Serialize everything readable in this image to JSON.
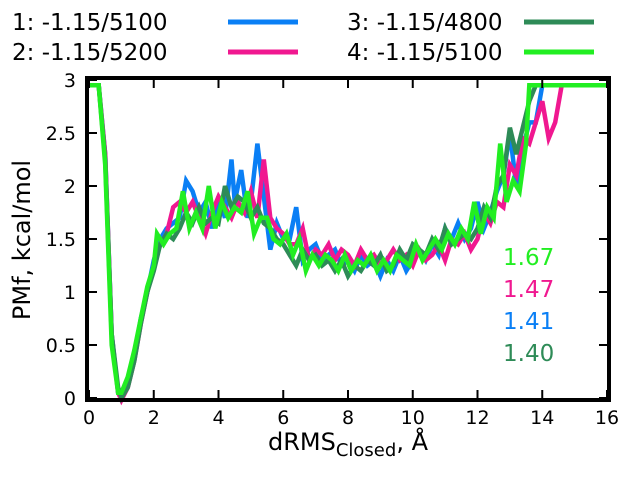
{
  "chart_data": {
    "type": "line",
    "title": "",
    "xlabel": "dRMS",
    "xlabel_sub": "Closed",
    "xlabel_suffix": ", Å",
    "ylabel": "PMf, kcal/mol",
    "xlim": [
      0,
      16
    ],
    "ylim": [
      0,
      3
    ],
    "xticks": [
      0,
      2,
      4,
      6,
      8,
      10,
      12,
      14,
      16
    ],
    "yticks": [
      0,
      0.5,
      1,
      1.5,
      2,
      2.5,
      3
    ],
    "ytick_labels": [
      "0",
      "0.5",
      "1",
      "1.5",
      "2",
      "2.5",
      "3"
    ],
    "grid": false,
    "legend_position": "top",
    "series": [
      {
        "name": "1: -1.15/5100",
        "color": "#0a7ff5",
        "x": [
          0,
          0.3,
          0.5,
          0.7,
          0.9,
          1.0,
          1.2,
          1.4,
          1.6,
          1.8,
          2.0,
          2.2,
          2.4,
          2.6,
          2.8,
          3.0,
          3.2,
          3.4,
          3.6,
          3.8,
          4.0,
          4.2,
          4.4,
          4.5,
          4.7,
          4.9,
          5.0,
          5.2,
          5.4,
          5.6,
          5.8,
          6.0,
          6.2,
          6.4,
          6.6,
          6.8,
          7.0,
          7.2,
          7.4,
          7.6,
          7.8,
          8.0,
          8.2,
          8.4,
          8.6,
          8.8,
          9.0,
          9.2,
          9.4,
          9.6,
          9.8,
          10.0,
          10.2,
          10.4,
          10.6,
          10.8,
          11.0,
          11.2,
          11.4,
          11.6,
          11.8,
          12.0,
          12.2,
          12.4,
          12.6,
          12.8,
          13.0,
          13.2,
          13.4,
          13.6,
          13.8,
          14.0,
          14.2,
          14.4,
          14.6,
          15.0,
          15.5,
          16.0
        ],
        "y": [
          2.95,
          2.95,
          2.3,
          0.6,
          0.05,
          0.0,
          0.15,
          0.4,
          0.75,
          1.0,
          1.3,
          1.5,
          1.6,
          1.65,
          1.7,
          2.05,
          1.95,
          1.75,
          1.85,
          1.6,
          1.9,
          1.7,
          2.25,
          1.85,
          2.15,
          1.7,
          1.85,
          2.4,
          1.9,
          1.4,
          1.65,
          1.5,
          1.5,
          1.8,
          1.3,
          1.4,
          1.45,
          1.3,
          1.35,
          1.4,
          1.25,
          1.3,
          1.2,
          1.35,
          1.25,
          1.3,
          1.15,
          1.3,
          1.2,
          1.35,
          1.2,
          1.3,
          1.4,
          1.3,
          1.45,
          1.35,
          1.6,
          1.5,
          1.65,
          1.5,
          1.6,
          1.85,
          1.6,
          1.75,
          1.95,
          2.1,
          2.5,
          2.0,
          2.35,
          2.6,
          2.6,
          2.95,
          2.95,
          2.95,
          2.95,
          2.95,
          2.95,
          2.95
        ]
      },
      {
        "name": "2: -1.15/5200",
        "color": "#f01890",
        "x": [
          0,
          0.3,
          0.5,
          0.7,
          0.9,
          1.0,
          1.2,
          1.4,
          1.6,
          1.8,
          2.0,
          2.2,
          2.4,
          2.6,
          2.8,
          3.0,
          3.2,
          3.4,
          3.6,
          3.8,
          4.0,
          4.2,
          4.4,
          4.6,
          4.8,
          5.0,
          5.2,
          5.4,
          5.6,
          5.8,
          6.0,
          6.2,
          6.4,
          6.6,
          6.8,
          7.0,
          7.2,
          7.4,
          7.6,
          7.8,
          8.0,
          8.2,
          8.4,
          8.6,
          8.8,
          9.0,
          9.2,
          9.4,
          9.6,
          9.8,
          10.0,
          10.2,
          10.4,
          10.6,
          10.8,
          11.0,
          11.2,
          11.4,
          11.6,
          11.8,
          12.0,
          12.2,
          12.4,
          12.6,
          12.8,
          13.0,
          13.2,
          13.4,
          13.6,
          13.8,
          14.0,
          14.2,
          14.4,
          14.6,
          15.0,
          15.5,
          16.0
        ],
        "y": [
          2.95,
          2.95,
          2.3,
          0.6,
          0.05,
          -0.02,
          0.1,
          0.35,
          0.7,
          1.0,
          1.25,
          1.45,
          1.55,
          1.8,
          1.85,
          1.75,
          1.85,
          1.7,
          1.55,
          1.75,
          1.9,
          1.8,
          1.7,
          1.85,
          1.75,
          1.95,
          1.7,
          2.25,
          1.7,
          1.6,
          1.55,
          1.45,
          1.45,
          1.6,
          1.3,
          1.4,
          1.35,
          1.45,
          1.3,
          1.4,
          1.35,
          1.25,
          1.4,
          1.3,
          1.35,
          1.25,
          1.3,
          1.4,
          1.3,
          1.35,
          1.25,
          1.4,
          1.3,
          1.35,
          1.45,
          1.3,
          1.5,
          1.45,
          1.55,
          1.4,
          1.5,
          1.75,
          1.65,
          1.85,
          1.8,
          2.2,
          2.1,
          2.45,
          2.4,
          2.6,
          2.8,
          2.45,
          2.6,
          2.95,
          2.95,
          2.95,
          2.95
        ]
      },
      {
        "name": "3: -1.15/4800",
        "color": "#2e8b57",
        "x": [
          0,
          0.3,
          0.5,
          0.7,
          0.9,
          1.0,
          1.2,
          1.4,
          1.6,
          1.8,
          2.0,
          2.2,
          2.4,
          2.6,
          2.8,
          3.0,
          3.2,
          3.4,
          3.6,
          3.8,
          4.0,
          4.2,
          4.4,
          4.6,
          4.8,
          5.0,
          5.2,
          5.4,
          5.6,
          5.8,
          6.0,
          6.2,
          6.4,
          6.6,
          6.8,
          7.0,
          7.2,
          7.4,
          7.6,
          7.8,
          8.0,
          8.2,
          8.4,
          8.6,
          8.8,
          9.0,
          9.2,
          9.4,
          9.6,
          9.8,
          10.0,
          10.2,
          10.4,
          10.6,
          10.8,
          11.0,
          11.2,
          11.4,
          11.6,
          11.8,
          12.0,
          12.2,
          12.4,
          12.6,
          12.8,
          13.0,
          13.2,
          13.4,
          13.6,
          13.8,
          14.0,
          14.5,
          15.0,
          15.5,
          16.0
        ],
        "y": [
          2.95,
          2.95,
          2.25,
          0.6,
          0.1,
          0.0,
          0.1,
          0.35,
          0.7,
          1.0,
          1.2,
          1.45,
          1.55,
          1.5,
          1.6,
          1.75,
          1.65,
          1.8,
          1.65,
          1.7,
          1.65,
          2.0,
          1.8,
          1.9,
          1.85,
          1.7,
          1.8,
          1.65,
          1.6,
          1.5,
          1.45,
          1.35,
          1.25,
          1.4,
          1.3,
          1.35,
          1.25,
          1.3,
          1.2,
          1.3,
          1.15,
          1.25,
          1.2,
          1.3,
          1.25,
          1.35,
          1.2,
          1.25,
          1.4,
          1.3,
          1.45,
          1.4,
          1.35,
          1.5,
          1.4,
          1.6,
          1.45,
          1.5,
          1.55,
          1.5,
          1.6,
          1.8,
          1.7,
          2.0,
          2.1,
          2.55,
          2.3,
          2.55,
          2.8,
          2.95,
          2.95,
          2.95,
          2.95,
          2.95,
          2.95
        ]
      },
      {
        "name": "4: -1.15/5100",
        "color": "#22ee22",
        "x": [
          0,
          0.3,
          0.5,
          0.7,
          0.9,
          1.0,
          1.2,
          1.4,
          1.6,
          1.8,
          2.0,
          2.1,
          2.3,
          2.5,
          2.7,
          2.9,
          3.1,
          3.3,
          3.5,
          3.7,
          3.9,
          4.1,
          4.3,
          4.5,
          4.7,
          4.9,
          5.1,
          5.3,
          5.5,
          5.7,
          5.9,
          6.1,
          6.3,
          6.5,
          6.7,
          6.9,
          7.1,
          7.3,
          7.5,
          7.7,
          7.9,
          8.1,
          8.3,
          8.5,
          8.7,
          8.9,
          9.1,
          9.3,
          9.5,
          9.7,
          9.9,
          10.1,
          10.3,
          10.5,
          10.7,
          10.9,
          11.1,
          11.3,
          11.5,
          11.7,
          11.9,
          12.1,
          12.3,
          12.5,
          12.7,
          12.9,
          13.1,
          13.3,
          13.5,
          13.6,
          13.8,
          14.0,
          14.5,
          15.0,
          15.5,
          16.0
        ],
        "y": [
          2.95,
          2.95,
          2.2,
          0.5,
          0.05,
          0.05,
          0.2,
          0.45,
          0.75,
          1.05,
          1.25,
          1.55,
          1.45,
          1.55,
          1.6,
          1.95,
          1.6,
          1.75,
          1.6,
          2.0,
          1.6,
          1.85,
          1.7,
          1.8,
          1.75,
          1.95,
          1.55,
          1.7,
          1.7,
          1.5,
          1.45,
          1.55,
          1.35,
          1.5,
          1.2,
          1.35,
          1.25,
          1.35,
          1.3,
          1.2,
          1.35,
          1.2,
          1.3,
          1.25,
          1.35,
          1.2,
          1.3,
          1.2,
          1.35,
          1.3,
          1.25,
          1.45,
          1.3,
          1.4,
          1.5,
          1.4,
          1.55,
          1.45,
          1.6,
          1.5,
          1.85,
          1.55,
          1.8,
          1.7,
          2.4,
          1.85,
          2.05,
          1.95,
          2.4,
          2.95,
          2.95,
          2.95,
          2.95,
          2.95,
          2.95,
          2.95
        ]
      }
    ],
    "annotations": [
      {
        "text": "1.67",
        "color": "#22ee22"
      },
      {
        "text": "1.47",
        "color": "#f01890"
      },
      {
        "text": "1.41",
        "color": "#0a7ff5"
      },
      {
        "text": "1.40",
        "color": "#2e8b57"
      }
    ]
  }
}
